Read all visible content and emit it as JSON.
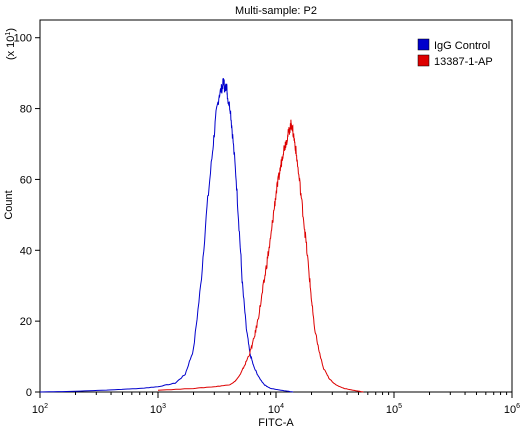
{
  "chart_data": {
    "type": "line",
    "title": "Multi-sample: P2",
    "xlabel": "FITC-A",
    "ylabel": "Count",
    "y_multiplier_label": "(x 10",
    "y_multiplier_exponent": "1",
    "x_scale": "log",
    "xlim": [
      100,
      1000000
    ],
    "ylim": [
      0,
      105
    ],
    "x_ticks": [
      {
        "value": 100,
        "base": "10",
        "exp": "2"
      },
      {
        "value": 1000,
        "base": "10",
        "exp": "3"
      },
      {
        "value": 10000,
        "base": "10",
        "exp": "4"
      },
      {
        "value": 100000,
        "base": "10",
        "exp": "5"
      },
      {
        "value": 1000000,
        "base": "10",
        "exp": "6"
      }
    ],
    "y_ticks": [
      0,
      20,
      40,
      60,
      80,
      100
    ],
    "y_tick_labels": [
      "0",
      "20",
      "40",
      "60",
      "80",
      "100"
    ],
    "legend_position": "top-right",
    "series": [
      {
        "name": "IgG Control",
        "color": "#0000cc",
        "x": [
          100,
          200,
          400,
          700,
          1000,
          1400,
          1700,
          2000,
          2300,
          2600,
          2900,
          3100,
          3300,
          3500,
          3600,
          3700,
          3800,
          3900,
          4100,
          4300,
          4600,
          4900,
          5200,
          5600,
          6000,
          6500,
          7200,
          8000,
          9000,
          11000,
          14000
        ],
        "y": [
          0,
          0.2,
          0.6,
          1.0,
          1.5,
          2.5,
          5,
          12,
          30,
          52,
          68,
          78,
          84,
          86,
          88,
          85,
          87,
          83,
          80,
          72,
          60,
          45,
          30,
          18,
          11,
          7,
          4,
          2,
          1,
          0.5,
          0
        ]
      },
      {
        "name": "13387-1-AP",
        "color": "#dd0000",
        "x": [
          1000,
          2000,
          3000,
          4000,
          4500,
          5000,
          5500,
          6000,
          6500,
          7000,
          7500,
          8000,
          8500,
          9000,
          9500,
          10000,
          10500,
          11000,
          11500,
          12000,
          12500,
          13000,
          13500,
          14000,
          14500,
          15000,
          16000,
          17000,
          18000,
          19000,
          20000,
          21000,
          23000,
          25000,
          28000,
          32000,
          38000,
          45000,
          55000
        ],
        "y": [
          0.5,
          1,
          1.5,
          2,
          3,
          5,
          8,
          11,
          15,
          20,
          26,
          32,
          38,
          43,
          50,
          56,
          60,
          64,
          68,
          70,
          72,
          74,
          76,
          73,
          70,
          66,
          58,
          50,
          42,
          34,
          26,
          19,
          12,
          7,
          4,
          2,
          1,
          0.5,
          0
        ]
      }
    ]
  }
}
